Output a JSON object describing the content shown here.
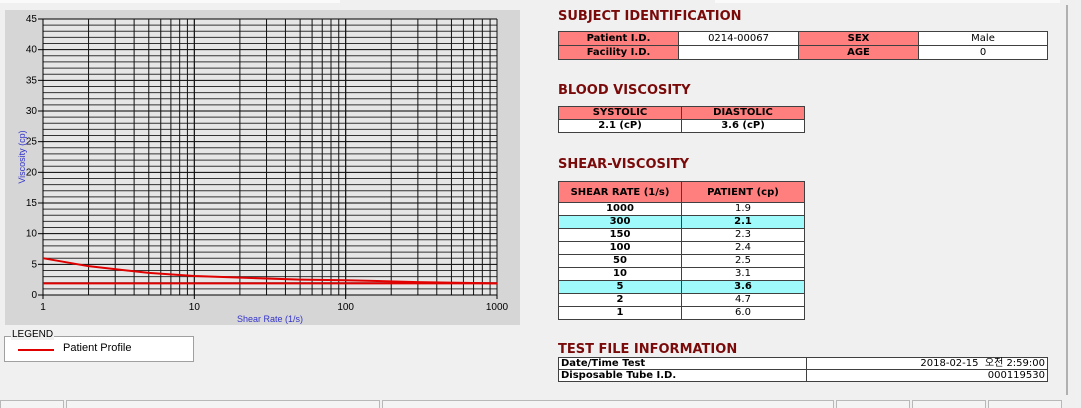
{
  "chart_data": {
    "type": "line",
    "xlabel": "Shear Rate (1/s)",
    "ylabel": "Viscosity (cp)",
    "xscale": "log",
    "xlim": [
      1,
      1000
    ],
    "ylim": [
      0,
      45
    ],
    "xticks": [
      "1",
      "10",
      "100",
      "1000"
    ],
    "yticks": [
      "0",
      "5",
      "10",
      "15",
      "20",
      "25",
      "30",
      "35",
      "40",
      "45"
    ],
    "grid": true,
    "series": [
      {
        "name": "Patient Profile",
        "x": [
          1,
          2,
          5,
          10,
          50,
          100,
          150,
          300,
          1000
        ],
        "y": [
          6.0,
          4.7,
          3.6,
          3.1,
          2.5,
          2.4,
          2.3,
          2.1,
          1.9
        ],
        "color": "#e00000"
      },
      {
        "x": [
          1,
          1000
        ],
        "y": [
          1.9,
          1.9
        ],
        "color": "#e00000"
      }
    ],
    "legend": {
      "title": "LEGEND",
      "placement": "bottom-left"
    }
  },
  "subject": {
    "title": "SUBJECT IDENTIFICATION",
    "patient_id_label": "Patient I.D.",
    "patient_id": "0214-00067",
    "sex_label": "SEX",
    "sex": "Male",
    "facility_label": "Facility I.D.",
    "facility": "",
    "age_label": "AGE",
    "age": "0"
  },
  "blood": {
    "title": "BLOOD VISCOSITY",
    "systolic_label": "SYSTOLIC",
    "diastolic_label": "DIASTOLIC",
    "systolic": "2.1 (cP)",
    "diastolic": "3.6 (cP)"
  },
  "shear": {
    "title": "SHEAR-VISCOSITY",
    "col1": "SHEAR RATE (1/s)",
    "col2": "PATIENT (cp)",
    "rows": [
      [
        "1000",
        "1.9"
      ],
      [
        "300",
        "2.1"
      ],
      [
        "150",
        "2.3"
      ],
      [
        "100",
        "2.4"
      ],
      [
        "50",
        "2.5"
      ],
      [
        "10",
        "3.1"
      ],
      [
        "5",
        "3.6"
      ],
      [
        "2",
        "4.7"
      ],
      [
        "1",
        "6.0"
      ]
    ],
    "highlight_color": "#9ffbfb"
  },
  "testfile": {
    "title": "TEST FILE INFORMATION",
    "date_label": "Date/Time Test",
    "date": "2018-02-15  오전 2:59:00",
    "tube_label": "Disposable Tube I.D.",
    "tube": "000119530"
  },
  "colors": {
    "header": "#ff7f7f",
    "title": "#7a0a0a",
    "line": "#e00000"
  }
}
